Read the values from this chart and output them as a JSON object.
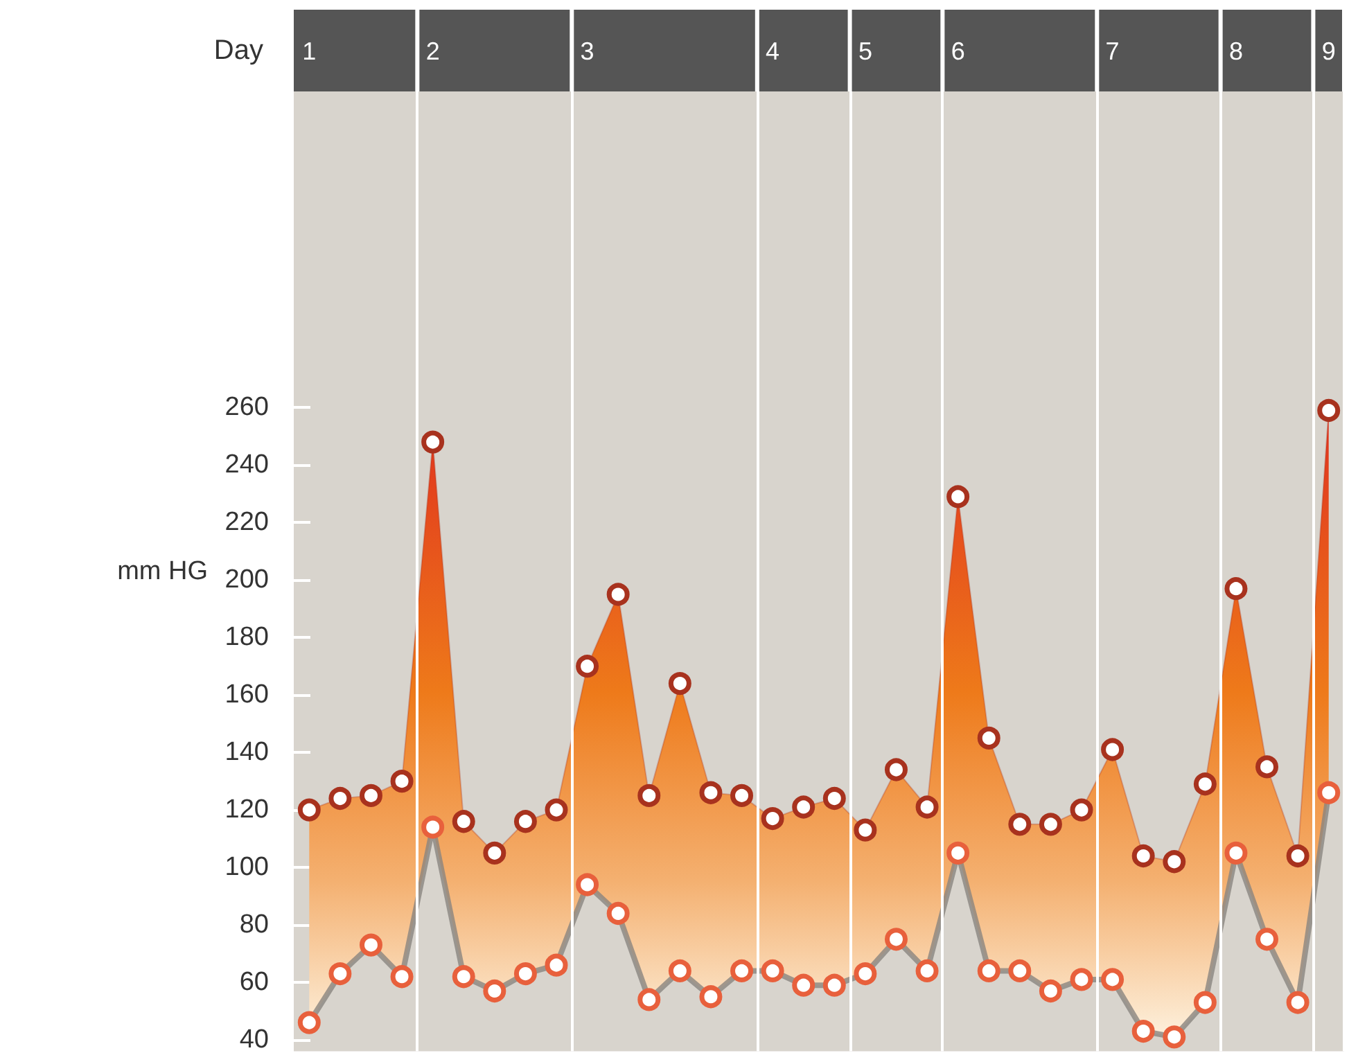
{
  "chart_data": {
    "type": "line",
    "ylabel": "mm HG",
    "xlabel": "Day",
    "categories": [
      "1",
      null,
      null,
      null,
      "2",
      null,
      null,
      null,
      null,
      "3",
      null,
      null,
      null,
      null,
      null,
      "4",
      null,
      null,
      "5",
      null,
      null,
      "6",
      null,
      null,
      null,
      null,
      "7",
      null,
      null,
      null,
      "8",
      null,
      null,
      "9"
    ],
    "series": [
      {
        "type": "area",
        "color": "#a8321e",
        "values": [
          120,
          124,
          125,
          130,
          248,
          116,
          105,
          116,
          120,
          170,
          195,
          125,
          164,
          126,
          125,
          117,
          121,
          124,
          113,
          134,
          121,
          229,
          145,
          115,
          115,
          120,
          141,
          104,
          102,
          129,
          197,
          135,
          104,
          259
        ]
      },
      {
        "color": "#e8603c",
        "values": [
          46,
          63,
          73,
          62,
          114,
          62,
          57,
          63,
          66,
          94,
          84,
          54,
          64,
          55,
          64,
          64,
          59,
          59,
          63,
          75,
          64,
          105,
          64,
          64,
          57,
          61,
          61,
          43,
          41,
          53,
          105,
          75,
          53,
          126
        ]
      }
    ],
    "ylim": [
      36,
      370
    ],
    "yticks": [
      40,
      60,
      80,
      100,
      120,
      140,
      160,
      180,
      200,
      220,
      240,
      260
    ],
    "marker": "circle",
    "grid": "x"
  }
}
